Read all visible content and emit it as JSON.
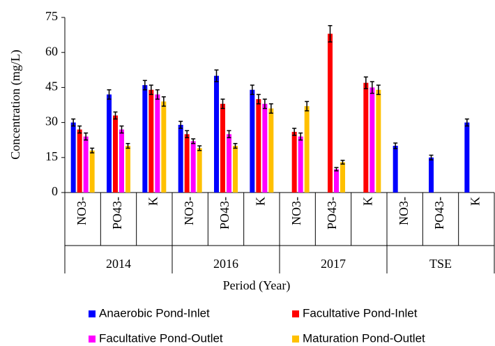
{
  "chart_data": {
    "type": "bar",
    "ylabel": "Concentration (mg/L)",
    "xlabel": "Period (Year)",
    "categories": [
      "NO3-",
      "PO43-",
      "K",
      "NO3-",
      "PO43-",
      "K",
      "NO3-",
      "PO43-",
      "K",
      "NO3-",
      "PO43-",
      "K"
    ],
    "groups": [
      "2014",
      "2016",
      "2017",
      "TSE"
    ],
    "ylim": [
      0,
      75
    ],
    "yticks": [
      0,
      15,
      30,
      45,
      60,
      75
    ],
    "series": [
      {
        "name": "Anaerobic Pond-Inlet",
        "color": "#0000ff",
        "values": [
          30,
          42,
          46,
          29,
          50,
          44,
          null,
          null,
          null,
          20,
          15,
          30
        ],
        "errors": [
          1.5,
          2,
          2,
          1.5,
          2.5,
          2,
          null,
          null,
          null,
          1.2,
          1,
          1.5
        ]
      },
      {
        "name": "Facultative Pond-Inlet",
        "color": "#ff0000",
        "values": [
          27,
          33,
          44,
          25,
          38,
          40,
          26,
          68,
          47,
          null,
          null,
          null
        ],
        "errors": [
          1.5,
          1.5,
          2,
          1.5,
          2,
          2,
          1.5,
          3.5,
          2.5,
          null,
          null,
          null
        ]
      },
      {
        "name": "Facultative Pond-Outlet",
        "color": "#ff00ff",
        "values": [
          24,
          27,
          42,
          22,
          25,
          38,
          24,
          10,
          45,
          null,
          null,
          null
        ],
        "errors": [
          1.5,
          1.5,
          2,
          1,
          1.5,
          2,
          1.5,
          0.7,
          2.5,
          null,
          null,
          null
        ]
      },
      {
        "name": "Maturation Pond-Outlet",
        "color": "#ffc000",
        "values": [
          18,
          20,
          39,
          19,
          20,
          36,
          37,
          13,
          44,
          null,
          null,
          null
        ],
        "errors": [
          1,
          1,
          2,
          1,
          1,
          2,
          2,
          0.8,
          2,
          null,
          null,
          null
        ]
      }
    ]
  }
}
